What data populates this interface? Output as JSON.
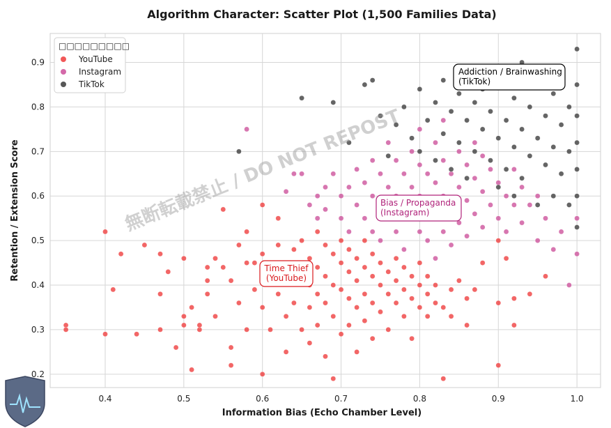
{
  "chart_data": {
    "type": "scatter",
    "title": "Algorithm Character: Scatter Plot (1,500 Families Data)",
    "xlabel": "Information Bias (Echo Chamber Level)",
    "ylabel": "Retention / Extension Score",
    "xlim": [
      0.33,
      1.03
    ],
    "ylim": [
      0.17,
      0.965
    ],
    "xticks": [
      "0.4",
      "0.5",
      "0.6",
      "0.7",
      "0.8",
      "0.9",
      "1.0"
    ],
    "yticks": [
      "0.2",
      "0.3",
      "0.4",
      "0.5",
      "0.6",
      "0.7",
      "0.8",
      "0.9"
    ],
    "grid": true,
    "legend_title": "□□□□□□□□□",
    "legend_position": "top-left",
    "series": [
      {
        "name": "YouTube",
        "color": "#ee3b3b",
        "points": [
          [
            0.35,
            0.31
          ],
          [
            0.35,
            0.3
          ],
          [
            0.4,
            0.52
          ],
          [
            0.4,
            0.29
          ],
          [
            0.41,
            0.39
          ],
          [
            0.42,
            0.47
          ],
          [
            0.44,
            0.29
          ],
          [
            0.45,
            0.49
          ],
          [
            0.47,
            0.47
          ],
          [
            0.47,
            0.38
          ],
          [
            0.47,
            0.3
          ],
          [
            0.48,
            0.43
          ],
          [
            0.49,
            0.26
          ],
          [
            0.5,
            0.33
          ],
          [
            0.5,
            0.31
          ],
          [
            0.5,
            0.46
          ],
          [
            0.51,
            0.35
          ],
          [
            0.51,
            0.21
          ],
          [
            0.52,
            0.3
          ],
          [
            0.52,
            0.31
          ],
          [
            0.53,
            0.38
          ],
          [
            0.53,
            0.44
          ],
          [
            0.53,
            0.41
          ],
          [
            0.54,
            0.33
          ],
          [
            0.54,
            0.46
          ],
          [
            0.55,
            0.44
          ],
          [
            0.55,
            0.57
          ],
          [
            0.56,
            0.26
          ],
          [
            0.56,
            0.41
          ],
          [
            0.56,
            0.22
          ],
          [
            0.57,
            0.49
          ],
          [
            0.57,
            0.36
          ],
          [
            0.58,
            0.52
          ],
          [
            0.58,
            0.45
          ],
          [
            0.58,
            0.3
          ],
          [
            0.59,
            0.39
          ],
          [
            0.59,
            0.45
          ],
          [
            0.6,
            0.2
          ],
          [
            0.6,
            0.58
          ],
          [
            0.6,
            0.47
          ],
          [
            0.6,
            0.35
          ],
          [
            0.61,
            0.3
          ],
          [
            0.61,
            0.42
          ],
          [
            0.62,
            0.49
          ],
          [
            0.62,
            0.38
          ],
          [
            0.62,
            0.55
          ],
          [
            0.63,
            0.44
          ],
          [
            0.63,
            0.33
          ],
          [
            0.63,
            0.25
          ],
          [
            0.64,
            0.48
          ],
          [
            0.64,
            0.41
          ],
          [
            0.64,
            0.36
          ],
          [
            0.65,
            0.5
          ],
          [
            0.65,
            0.43
          ],
          [
            0.65,
            0.3
          ],
          [
            0.66,
            0.46
          ],
          [
            0.66,
            0.4
          ],
          [
            0.66,
            0.35
          ],
          [
            0.66,
            0.27
          ],
          [
            0.67,
            0.44
          ],
          [
            0.67,
            0.52
          ],
          [
            0.67,
            0.38
          ],
          [
            0.67,
            0.31
          ],
          [
            0.68,
            0.49
          ],
          [
            0.68,
            0.42
          ],
          [
            0.68,
            0.36
          ],
          [
            0.68,
            0.24
          ],
          [
            0.69,
            0.47
          ],
          [
            0.69,
            0.4
          ],
          [
            0.69,
            0.33
          ],
          [
            0.69,
            0.19
          ],
          [
            0.7,
            0.5
          ],
          [
            0.7,
            0.45
          ],
          [
            0.7,
            0.39
          ],
          [
            0.7,
            0.29
          ],
          [
            0.71,
            0.48
          ],
          [
            0.71,
            0.43
          ],
          [
            0.71,
            0.37
          ],
          [
            0.71,
            0.31
          ],
          [
            0.72,
            0.46
          ],
          [
            0.72,
            0.41
          ],
          [
            0.72,
            0.35
          ],
          [
            0.72,
            0.25
          ],
          [
            0.73,
            0.5
          ],
          [
            0.73,
            0.44
          ],
          [
            0.73,
            0.38
          ],
          [
            0.73,
            0.32
          ],
          [
            0.74,
            0.47
          ],
          [
            0.74,
            0.42
          ],
          [
            0.74,
            0.36
          ],
          [
            0.74,
            0.28
          ],
          [
            0.75,
            0.45
          ],
          [
            0.75,
            0.4
          ],
          [
            0.75,
            0.34
          ],
          [
            0.76,
            0.43
          ],
          [
            0.76,
            0.38
          ],
          [
            0.76,
            0.3
          ],
          [
            0.77,
            0.41
          ],
          [
            0.77,
            0.36
          ],
          [
            0.77,
            0.46
          ],
          [
            0.78,
            0.39
          ],
          [
            0.78,
            0.33
          ],
          [
            0.78,
            0.44
          ],
          [
            0.79,
            0.37
          ],
          [
            0.79,
            0.42
          ],
          [
            0.79,
            0.28
          ],
          [
            0.8,
            0.4
          ],
          [
            0.8,
            0.35
          ],
          [
            0.8,
            0.45
          ],
          [
            0.81,
            0.38
          ],
          [
            0.81,
            0.42
          ],
          [
            0.81,
            0.33
          ],
          [
            0.82,
            0.36
          ],
          [
            0.82,
            0.4
          ],
          [
            0.83,
            0.19
          ],
          [
            0.83,
            0.35
          ],
          [
            0.84,
            0.39
          ],
          [
            0.84,
            0.33
          ],
          [
            0.85,
            0.41
          ],
          [
            0.86,
            0.37
          ],
          [
            0.86,
            0.31
          ],
          [
            0.87,
            0.39
          ],
          [
            0.88,
            0.45
          ],
          [
            0.9,
            0.22
          ],
          [
            0.9,
            0.36
          ],
          [
            0.9,
            0.5
          ],
          [
            0.91,
            0.46
          ],
          [
            0.92,
            0.31
          ],
          [
            0.92,
            0.37
          ],
          [
            0.94,
            0.38
          ],
          [
            0.96,
            0.42
          ]
        ]
      },
      {
        "name": "Instagram",
        "color": "#cc4f9a",
        "points": [
          [
            0.58,
            0.75
          ],
          [
            0.63,
            0.61
          ],
          [
            0.64,
            0.65
          ],
          [
            0.65,
            0.65
          ],
          [
            0.66,
            0.58
          ],
          [
            0.67,
            0.6
          ],
          [
            0.67,
            0.55
          ],
          [
            0.68,
            0.62
          ],
          [
            0.68,
            0.57
          ],
          [
            0.69,
            0.65
          ],
          [
            0.7,
            0.6
          ],
          [
            0.7,
            0.55
          ],
          [
            0.71,
            0.62
          ],
          [
            0.71,
            0.52
          ],
          [
            0.72,
            0.66
          ],
          [
            0.72,
            0.58
          ],
          [
            0.73,
            0.63
          ],
          [
            0.73,
            0.55
          ],
          [
            0.74,
            0.68
          ],
          [
            0.74,
            0.6
          ],
          [
            0.74,
            0.52
          ],
          [
            0.75,
            0.65
          ],
          [
            0.75,
            0.57
          ],
          [
            0.75,
            0.5
          ],
          [
            0.76,
            0.62
          ],
          [
            0.76,
            0.55
          ],
          [
            0.76,
            0.72
          ],
          [
            0.77,
            0.68
          ],
          [
            0.77,
            0.6
          ],
          [
            0.77,
            0.52
          ],
          [
            0.78,
            0.65
          ],
          [
            0.78,
            0.58
          ],
          [
            0.78,
            0.48
          ],
          [
            0.79,
            0.7
          ],
          [
            0.79,
            0.62
          ],
          [
            0.79,
            0.55
          ],
          [
            0.8,
            0.67
          ],
          [
            0.8,
            0.6
          ],
          [
            0.8,
            0.52
          ],
          [
            0.8,
            0.75
          ],
          [
            0.81,
            0.65
          ],
          [
            0.81,
            0.57
          ],
          [
            0.81,
            0.5
          ],
          [
            0.82,
            0.72
          ],
          [
            0.82,
            0.63
          ],
          [
            0.82,
            0.55
          ],
          [
            0.82,
            0.46
          ],
          [
            0.83,
            0.68
          ],
          [
            0.83,
            0.6
          ],
          [
            0.83,
            0.52
          ],
          [
            0.83,
            0.77
          ],
          [
            0.84,
            0.65
          ],
          [
            0.84,
            0.57
          ],
          [
            0.84,
            0.49
          ],
          [
            0.85,
            0.7
          ],
          [
            0.85,
            0.62
          ],
          [
            0.85,
            0.54
          ],
          [
            0.86,
            0.67
          ],
          [
            0.86,
            0.59
          ],
          [
            0.86,
            0.51
          ],
          [
            0.87,
            0.72
          ],
          [
            0.87,
            0.64
          ],
          [
            0.87,
            0.56
          ],
          [
            0.88,
            0.69
          ],
          [
            0.88,
            0.61
          ],
          [
            0.88,
            0.53
          ],
          [
            0.89,
            0.66
          ],
          [
            0.89,
            0.58
          ],
          [
            0.9,
            0.63
          ],
          [
            0.9,
            0.55
          ],
          [
            0.91,
            0.6
          ],
          [
            0.91,
            0.52
          ],
          [
            0.92,
            0.66
          ],
          [
            0.92,
            0.58
          ],
          [
            0.93,
            0.62
          ],
          [
            0.93,
            0.54
          ],
          [
            0.94,
            0.58
          ],
          [
            0.95,
            0.6
          ],
          [
            0.95,
            0.5
          ],
          [
            0.96,
            0.55
          ],
          [
            0.97,
            0.48
          ],
          [
            0.98,
            0.52
          ],
          [
            0.99,
            0.4
          ],
          [
            1.0,
            0.47
          ],
          [
            1.0,
            0.55
          ]
        ]
      },
      {
        "name": "TikTok",
        "color": "#3a3a3a",
        "points": [
          [
            0.57,
            0.7
          ],
          [
            0.65,
            0.82
          ],
          [
            0.69,
            0.81
          ],
          [
            0.71,
            0.72
          ],
          [
            0.73,
            0.85
          ],
          [
            0.74,
            0.86
          ],
          [
            0.75,
            0.78
          ],
          [
            0.76,
            0.69
          ],
          [
            0.77,
            0.76
          ],
          [
            0.78,
            0.8
          ],
          [
            0.79,
            0.73
          ],
          [
            0.8,
            0.84
          ],
          [
            0.8,
            0.7
          ],
          [
            0.81,
            0.77
          ],
          [
            0.82,
            0.81
          ],
          [
            0.82,
            0.68
          ],
          [
            0.83,
            0.74
          ],
          [
            0.83,
            0.86
          ],
          [
            0.84,
            0.79
          ],
          [
            0.84,
            0.66
          ],
          [
            0.85,
            0.72
          ],
          [
            0.85,
            0.83
          ],
          [
            0.86,
            0.77
          ],
          [
            0.86,
            0.64
          ],
          [
            0.87,
            0.81
          ],
          [
            0.87,
            0.7
          ],
          [
            0.88,
            0.75
          ],
          [
            0.88,
            0.84
          ],
          [
            0.89,
            0.68
          ],
          [
            0.89,
            0.79
          ],
          [
            0.9,
            0.73
          ],
          [
            0.9,
            0.85
          ],
          [
            0.9,
            0.62
          ],
          [
            0.91,
            0.77
          ],
          [
            0.91,
            0.66
          ],
          [
            0.92,
            0.82
          ],
          [
            0.92,
            0.71
          ],
          [
            0.92,
            0.6
          ],
          [
            0.93,
            0.9
          ],
          [
            0.93,
            0.75
          ],
          [
            0.93,
            0.64
          ],
          [
            0.94,
            0.8
          ],
          [
            0.94,
            0.69
          ],
          [
            0.95,
            0.86
          ],
          [
            0.95,
            0.73
          ],
          [
            0.95,
            0.58
          ],
          [
            0.96,
            0.78
          ],
          [
            0.96,
            0.67
          ],
          [
            0.97,
            0.83
          ],
          [
            0.97,
            0.71
          ],
          [
            0.97,
            0.6
          ],
          [
            0.98,
            0.76
          ],
          [
            0.98,
            0.65
          ],
          [
            0.98,
            0.89
          ],
          [
            0.99,
            0.8
          ],
          [
            0.99,
            0.7
          ],
          [
            0.99,
            0.58
          ],
          [
            1.0,
            0.93
          ],
          [
            1.0,
            0.85
          ],
          [
            1.0,
            0.78
          ],
          [
            1.0,
            0.72
          ],
          [
            1.0,
            0.66
          ],
          [
            1.0,
            0.6
          ],
          [
            1.0,
            0.53
          ]
        ]
      }
    ],
    "annotations": [
      {
        "text": "Addiction / Brainwashing",
        "text2": "(TikTok)",
        "color": "#000000",
        "border": "#000000"
      },
      {
        "text": "Bias / Propaganda",
        "text2": "(Instagram)",
        "color": "#b0237a",
        "border": "#b0237a"
      },
      {
        "text": "Time Thief",
        "text2": "(YouTube)",
        "color": "#d9191d",
        "border": "#d9191d"
      }
    ],
    "watermark": "無断転載禁止 / DO NOT REPOST"
  }
}
